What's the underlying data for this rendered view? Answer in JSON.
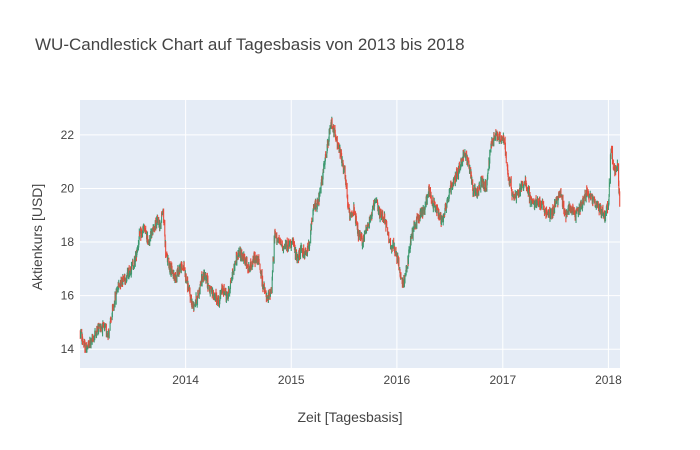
{
  "chart_data": {
    "type": "candlestick",
    "title": "WU-Candlestick Chart auf Tagesbasis von 2013 bis 2018",
    "xlabel": "Zeit [Tagesbasis]",
    "ylabel": "Aktienkurs [USD]",
    "xlim": [
      "2013-01-01",
      "2018-02-10"
    ],
    "ylim": [
      13.3,
      23.3
    ],
    "x_ticks": [
      "2014",
      "2015",
      "2016",
      "2017",
      "2018"
    ],
    "y_ticks": [
      "14",
      "16",
      "18",
      "20",
      "22"
    ],
    "grid": true,
    "colors": {
      "increasing": "#3D9970",
      "decreasing": "#E84A3A",
      "plot_bg": "#E5ECF6",
      "grid": "#ffffff",
      "text": "#444444"
    },
    "approx_close_path": [
      [
        "2013-01-02",
        14.6
      ],
      [
        "2013-01-20",
        14.0
      ],
      [
        "2013-02-10",
        14.3
      ],
      [
        "2013-03-10",
        14.9
      ],
      [
        "2013-04-10",
        14.6
      ],
      [
        "2013-04-25",
        15.5
      ],
      [
        "2013-05-10",
        16.3
      ],
      [
        "2013-05-25",
        16.6
      ],
      [
        "2013-06-10",
        16.7
      ],
      [
        "2013-06-25",
        17.0
      ],
      [
        "2013-07-10",
        17.3
      ],
      [
        "2013-07-25",
        18.2
      ],
      [
        "2013-08-10",
        18.5
      ],
      [
        "2013-08-25",
        18.0
      ],
      [
        "2013-09-10",
        18.5
      ],
      [
        "2013-09-25",
        18.8
      ],
      [
        "2013-10-05",
        18.6
      ],
      [
        "2013-10-15",
        19.2
      ],
      [
        "2013-10-25",
        17.5
      ],
      [
        "2013-11-10",
        17.0
      ],
      [
        "2013-11-25",
        16.7
      ],
      [
        "2013-12-10",
        17.0
      ],
      [
        "2013-12-25",
        17.1
      ],
      [
        "2014-01-10",
        16.3
      ],
      [
        "2014-01-25",
        15.6
      ],
      [
        "2014-02-10",
        15.9
      ],
      [
        "2014-02-25",
        16.6
      ],
      [
        "2014-03-10",
        16.8
      ],
      [
        "2014-03-25",
        16.2
      ],
      [
        "2014-04-10",
        16.0
      ],
      [
        "2014-04-25",
        15.8
      ],
      [
        "2014-05-10",
        16.3
      ],
      [
        "2014-05-25",
        15.9
      ],
      [
        "2014-06-10",
        16.7
      ],
      [
        "2014-06-25",
        17.4
      ],
      [
        "2014-07-10",
        17.6
      ],
      [
        "2014-07-25",
        17.3
      ],
      [
        "2014-08-10",
        17.0
      ],
      [
        "2014-08-25",
        17.4
      ],
      [
        "2014-09-10",
        17.3
      ],
      [
        "2014-09-25",
        16.4
      ],
      [
        "2014-10-10",
        15.8
      ],
      [
        "2014-10-25",
        16.3
      ],
      [
        "2014-11-05",
        18.3
      ],
      [
        "2014-11-20",
        18.0
      ],
      [
        "2014-12-05",
        17.8
      ],
      [
        "2014-12-20",
        17.9
      ],
      [
        "2015-01-05",
        18.0
      ],
      [
        "2015-01-20",
        17.4
      ],
      [
        "2015-02-05",
        17.7
      ],
      [
        "2015-02-20",
        17.5
      ],
      [
        "2015-03-05",
        18.0
      ],
      [
        "2015-03-20",
        19.3
      ],
      [
        "2015-04-05",
        19.5
      ],
      [
        "2015-04-20",
        20.5
      ],
      [
        "2015-05-05",
        21.5
      ],
      [
        "2015-05-20",
        22.5
      ],
      [
        "2015-06-05",
        21.8
      ],
      [
        "2015-06-20",
        21.3
      ],
      [
        "2015-07-05",
        20.5
      ],
      [
        "2015-07-20",
        19.0
      ],
      [
        "2015-08-05",
        19.2
      ],
      [
        "2015-08-20",
        18.3
      ],
      [
        "2015-09-05",
        18.0
      ],
      [
        "2015-09-20",
        18.6
      ],
      [
        "2015-10-05",
        19.0
      ],
      [
        "2015-10-20",
        19.5
      ],
      [
        "2015-11-05",
        19.0
      ],
      [
        "2015-11-20",
        18.9
      ],
      [
        "2015-12-05",
        18.0
      ],
      [
        "2015-12-20",
        17.8
      ],
      [
        "2016-01-05",
        17.3
      ],
      [
        "2016-01-20",
        16.4
      ],
      [
        "2016-02-05",
        17.0
      ],
      [
        "2016-02-20",
        18.2
      ],
      [
        "2016-03-05",
        18.7
      ],
      [
        "2016-03-20",
        19.0
      ],
      [
        "2016-04-05",
        19.2
      ],
      [
        "2016-04-20",
        20.0
      ],
      [
        "2016-05-05",
        19.4
      ],
      [
        "2016-05-20",
        19.2
      ],
      [
        "2016-06-05",
        18.8
      ],
      [
        "2016-06-20",
        19.4
      ],
      [
        "2016-07-05",
        20.0
      ],
      [
        "2016-07-20",
        20.4
      ],
      [
        "2016-08-05",
        20.8
      ],
      [
        "2016-08-20",
        21.3
      ],
      [
        "2016-09-05",
        21.0
      ],
      [
        "2016-09-20",
        20.0
      ],
      [
        "2016-10-05",
        19.8
      ],
      [
        "2016-10-20",
        20.3
      ],
      [
        "2016-11-05",
        20.0
      ],
      [
        "2016-11-20",
        21.5
      ],
      [
        "2016-12-05",
        22.0
      ],
      [
        "2016-12-20",
        21.9
      ],
      [
        "2017-01-05",
        21.8
      ],
      [
        "2017-01-20",
        20.5
      ],
      [
        "2017-02-05",
        19.7
      ],
      [
        "2017-02-20",
        19.8
      ],
      [
        "2017-03-05",
        20.0
      ],
      [
        "2017-03-20",
        20.3
      ],
      [
        "2017-04-05",
        19.6
      ],
      [
        "2017-04-20",
        19.4
      ],
      [
        "2017-05-05",
        19.5
      ],
      [
        "2017-05-20",
        19.3
      ],
      [
        "2017-06-05",
        19.0
      ],
      [
        "2017-06-20",
        19.1
      ],
      [
        "2017-07-05",
        19.5
      ],
      [
        "2017-07-20",
        19.8
      ],
      [
        "2017-08-05",
        19.0
      ],
      [
        "2017-08-20",
        19.4
      ],
      [
        "2017-09-05",
        19.0
      ],
      [
        "2017-09-20",
        19.2
      ],
      [
        "2017-10-05",
        19.5
      ],
      [
        "2017-10-20",
        19.9
      ],
      [
        "2017-11-05",
        19.6
      ],
      [
        "2017-11-20",
        19.4
      ],
      [
        "2017-12-05",
        19.2
      ],
      [
        "2017-12-20",
        19.0
      ],
      [
        "2018-01-01",
        19.4
      ],
      [
        "2018-01-10",
        21.5
      ],
      [
        "2018-01-20",
        20.6
      ],
      [
        "2018-02-01",
        20.9
      ],
      [
        "2018-02-10",
        19.3
      ]
    ]
  }
}
